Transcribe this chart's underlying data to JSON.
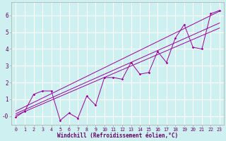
{
  "xlabel": "Windchill (Refroidissement éolien,°C)",
  "bg_color": "#cff0f0",
  "line_color": "#990099",
  "grid_color": "#ffffff",
  "xlim": [
    -0.5,
    23.5
  ],
  "ylim": [
    -0.5,
    6.8
  ],
  "xticks": [
    0,
    1,
    2,
    3,
    4,
    5,
    6,
    7,
    8,
    9,
    10,
    11,
    12,
    13,
    14,
    15,
    16,
    17,
    18,
    19,
    20,
    21,
    22,
    23
  ],
  "yticks": [
    0,
    1,
    2,
    3,
    4,
    5,
    6
  ],
  "ytick_labels": [
    "-0",
    "1",
    "2",
    "3",
    "4",
    "5",
    "6"
  ],
  "data_x": [
    0,
    1,
    2,
    3,
    4,
    5,
    6,
    7,
    8,
    9,
    10,
    11,
    12,
    13,
    14,
    15,
    16,
    17,
    18,
    19,
    20,
    21,
    22,
    23
  ],
  "data_y": [
    -0.05,
    0.3,
    1.3,
    1.5,
    1.5,
    -0.25,
    0.18,
    -0.12,
    1.2,
    0.65,
    2.3,
    2.3,
    2.2,
    3.2,
    2.5,
    2.6,
    3.85,
    3.2,
    4.65,
    5.45,
    4.1,
    4.0,
    6.1,
    6.3
  ],
  "line1_x": [
    0,
    23
  ],
  "line1_y": [
    0.05,
    5.25
  ],
  "line2_x": [
    0,
    23
  ],
  "line2_y": [
    0.15,
    5.55
  ],
  "line3_x": [
    0,
    23
  ],
  "line3_y": [
    0.3,
    6.25
  ],
  "xlabel_fontsize": 5.5,
  "xtick_fontsize": 4.8,
  "ytick_fontsize": 5.5
}
